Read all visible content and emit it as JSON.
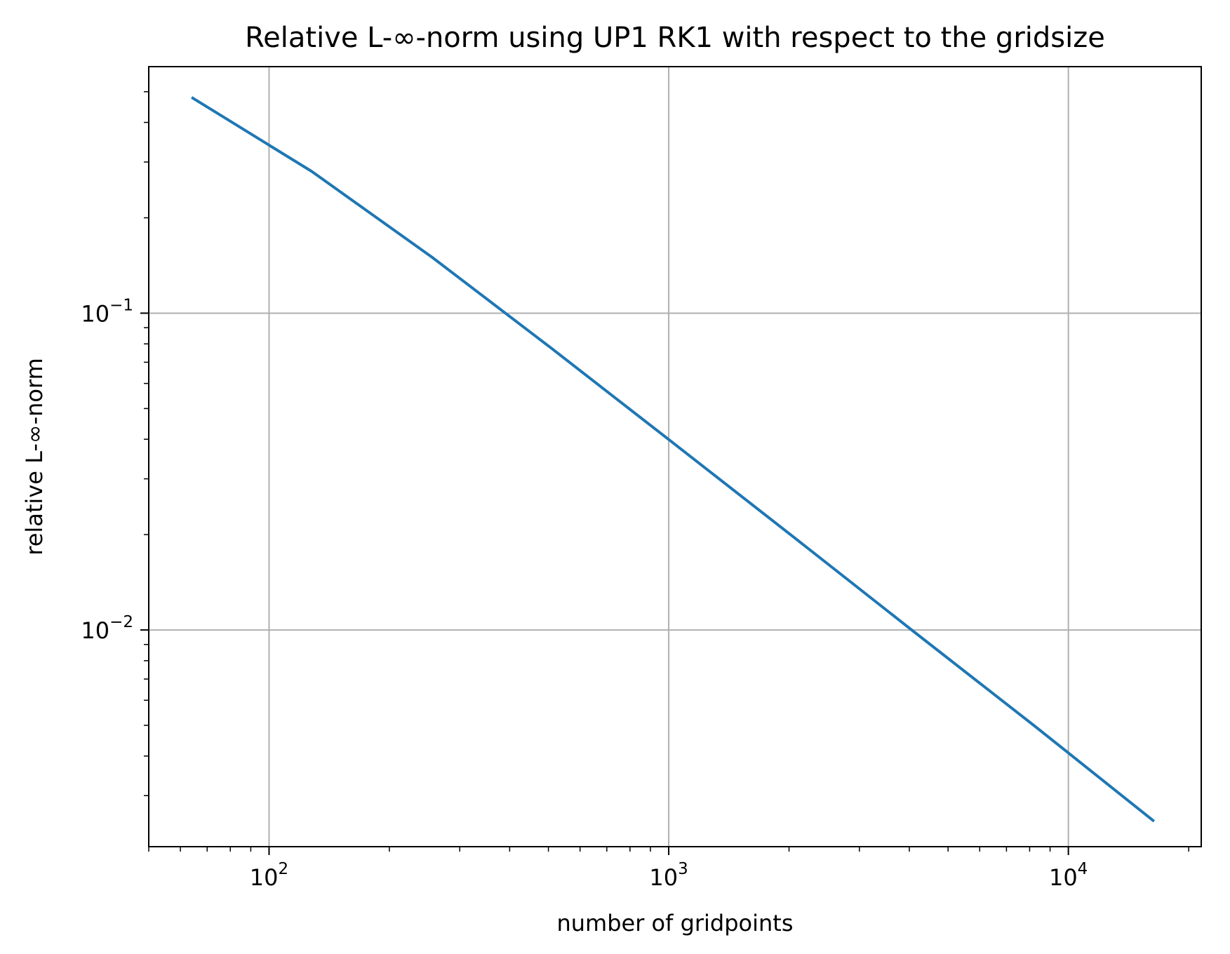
{
  "chart_data": {
    "type": "line",
    "title": "Relative L-∞-norm using UP1 RK1 with respect to the gridsize",
    "xlabel": "number of gridpoints",
    "ylabel": "relative L-∞-norm",
    "xscale": "log",
    "yscale": "log",
    "xlim": [
      50,
      21500
    ],
    "ylim": [
      0.00207,
      0.6
    ],
    "grid": true,
    "x_ticks": [
      {
        "value": 100,
        "base": "10",
        "exp": "2"
      },
      {
        "value": 1000,
        "base": "10",
        "exp": "3"
      },
      {
        "value": 10000,
        "base": "10",
        "exp": "4"
      }
    ],
    "y_ticks": [
      {
        "value": 0.1,
        "base": "10",
        "exp": "−1"
      },
      {
        "value": 0.01,
        "base": "10",
        "exp": "−2"
      }
    ],
    "series": [
      {
        "color": "#1f77b4",
        "x": [
          64,
          128,
          256,
          512,
          1024,
          2048,
          4096,
          8192,
          16384
        ],
        "y": [
          0.48,
          0.28,
          0.15,
          0.077,
          0.039,
          0.0197,
          0.0099,
          0.005,
          0.00249
        ]
      }
    ]
  }
}
